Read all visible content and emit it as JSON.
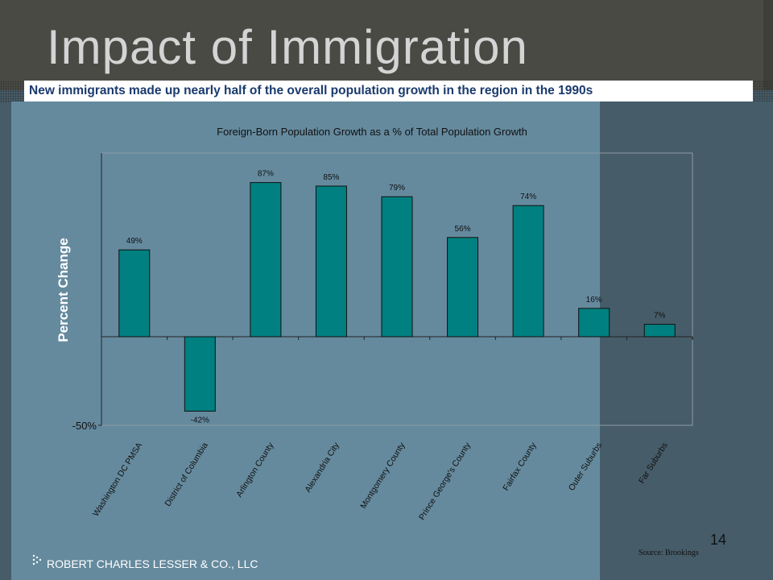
{
  "slide": {
    "title": "Impact of Immigration",
    "subtitle": "New immigrants made up nearly half of the overall population growth in the region in the 1990s",
    "page_number": "14",
    "source": "Source: Brookings",
    "company": "ROBERT CHARLES LESSER & CO., LLC"
  },
  "chart_data": {
    "type": "bar",
    "title": "Foreign-Born Population Growth as a % of Total Population Growth",
    "ylabel": "Percent Change",
    "xlabel": "",
    "categories": [
      "Washington DC PMSA",
      "District of Columbia",
      "Arlington County",
      "Alexandria City",
      "Montgomery County",
      "Prince George's County",
      "Fairfax County",
      "Outer Suburbs",
      "Far Suburbs"
    ],
    "values": [
      49,
      -42,
      87,
      85,
      79,
      56,
      74,
      16,
      7
    ],
    "data_labels": [
      "49%",
      "-42%",
      "87%",
      "85%",
      "79%",
      "56%",
      "74%",
      "16%",
      "7%"
    ],
    "ytick_labels": [
      "-50%"
    ],
    "ylim": [
      -50,
      100
    ],
    "grid": false,
    "legend": "none",
    "colors": {
      "bar": "#008080",
      "plot_background": "#658a9e",
      "text": "#111111"
    }
  }
}
